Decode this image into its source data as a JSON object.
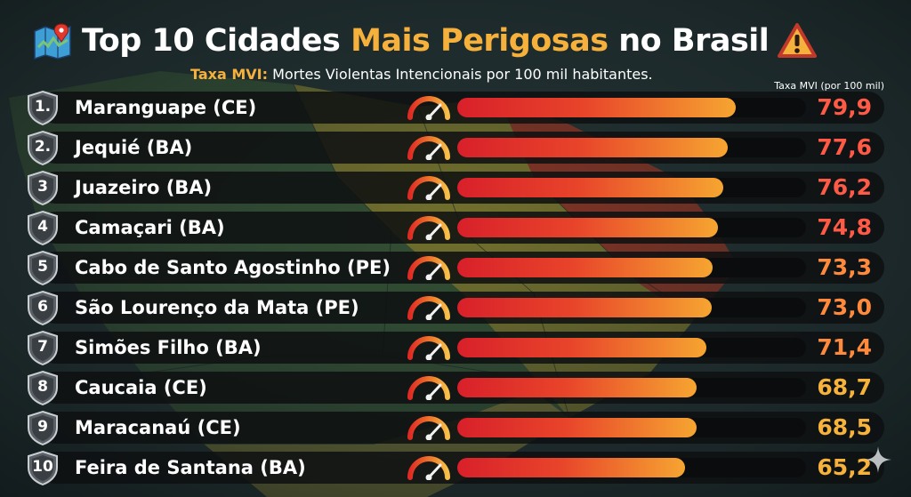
{
  "title": {
    "part1": "Top 10 Cidades",
    "highlight": "Mais Perigosas",
    "part2": "no Brasil"
  },
  "subtitle": {
    "label": "Taxa MVI:",
    "text": "Mortes Violentas Intencionais por 100 mil habitantes."
  },
  "column_header": "Taxa MVI (por 100 mil)",
  "icons": {
    "title_left": "map-pin-icon",
    "title_right": "warning-icon",
    "gauge": "speedometer-gauge-icon",
    "corner": "sparkle-icon"
  },
  "colors": {
    "highlight": "#f6b13c",
    "bar_start": "#d8202a",
    "bar_end": "#f6a531",
    "value_high": "#ff5a45",
    "value_mid": "#ff8a3c",
    "value_low": "#f7b23b"
  },
  "chart_data": {
    "type": "bar",
    "orientation": "horizontal",
    "title": "Top 10 Cidades Mais Perigosas no Brasil",
    "xlim": [
      0,
      100
    ],
    "categories": [
      "Maranguape (CE)",
      "Jequié (BA)",
      "Juazeiro (BA)",
      "Camaçari (BA)",
      "Cabo de Santo Agostinho (PE)",
      "São Lourenço da Mata (PE)",
      "Simões Filho (BA)",
      "Caucaia (CE)",
      "Maracanaú (CE)",
      "Feira de Santana (BA)"
    ],
    "ranks": [
      "1.",
      "2.",
      "3",
      "4",
      "5",
      "6",
      "7",
      "8",
      "9",
      "10"
    ],
    "values": [
      79.9,
      77.6,
      76.2,
      74.8,
      73.3,
      73.0,
      71.4,
      68.7,
      68.5,
      65.2
    ],
    "value_labels": [
      "79,9",
      "77,6",
      "76,2",
      "74,8",
      "73,3",
      "73,0",
      "71,4",
      "68,7",
      "68,5",
      "65,2"
    ]
  }
}
